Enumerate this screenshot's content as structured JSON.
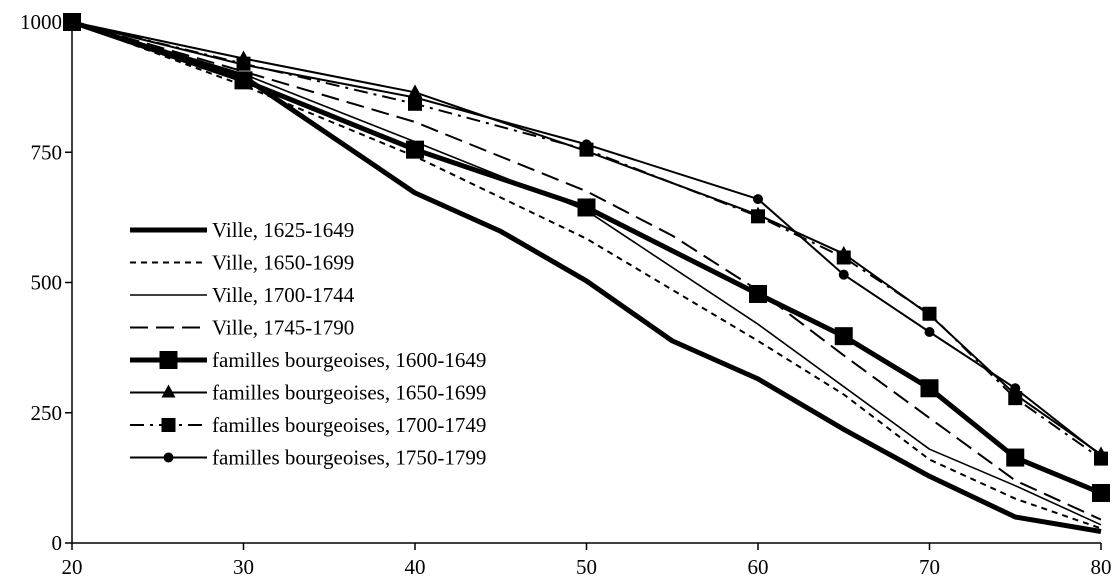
{
  "chart_data": {
    "type": "line",
    "title": "",
    "xlabel": "",
    "ylabel": "",
    "xlim": [
      20,
      80
    ],
    "ylim": [
      0,
      1000
    ],
    "x_ticks": [
      20,
      30,
      40,
      50,
      60,
      70,
      80
    ],
    "y_ticks": [
      0,
      250,
      500,
      750,
      1000
    ],
    "x_tick_labels": [
      "20",
      "30",
      "40",
      "50",
      "60",
      "70",
      "80"
    ],
    "y_tick_labels": [
      "0",
      "250",
      "500",
      "750",
      "1000"
    ],
    "grid": false,
    "legend_position": "center-left",
    "series": [
      {
        "name": "Ville, 1625-1649",
        "style": "solid-thick",
        "marker": "none",
        "color": "#000000",
        "points": [
          [
            20,
            1000
          ],
          [
            25,
            945
          ],
          [
            30,
            895
          ],
          [
            40,
            672
          ],
          [
            45,
            598
          ],
          [
            50,
            503
          ],
          [
            55,
            388
          ],
          [
            60,
            315
          ],
          [
            65,
            218
          ],
          [
            70,
            128
          ],
          [
            75,
            50
          ],
          [
            80,
            22
          ]
        ]
      },
      {
        "name": "Ville, 1650-1699",
        "style": "dotted",
        "marker": "none",
        "color": "#000000",
        "points": [
          [
            20,
            1000
          ],
          [
            30,
            878
          ],
          [
            40,
            742
          ],
          [
            50,
            584
          ],
          [
            60,
            388
          ],
          [
            65,
            285
          ],
          [
            70,
            160
          ],
          [
            75,
            85
          ],
          [
            80,
            28
          ]
        ]
      },
      {
        "name": "Ville, 1700-1744",
        "style": "solid-thin",
        "marker": "none",
        "color": "#000000",
        "points": [
          [
            20,
            1000
          ],
          [
            30,
            900
          ],
          [
            40,
            770
          ],
          [
            50,
            638
          ],
          [
            60,
            420
          ],
          [
            65,
            300
          ],
          [
            70,
            180
          ],
          [
            75,
            110
          ],
          [
            80,
            35
          ]
        ]
      },
      {
        "name": "Ville, 1745-1790",
        "style": "longdash",
        "marker": "none",
        "color": "#000000",
        "points": [
          [
            20,
            1000
          ],
          [
            30,
            905
          ],
          [
            40,
            808
          ],
          [
            50,
            675
          ],
          [
            55,
            590
          ],
          [
            60,
            485
          ],
          [
            65,
            360
          ],
          [
            70,
            240
          ],
          [
            75,
            120
          ],
          [
            80,
            45
          ]
        ]
      },
      {
        "name": "familles bourgeoises, 1600-1649",
        "style": "solid-thick",
        "marker": "square-large",
        "color": "#000000",
        "points": [
          [
            20,
            1000
          ],
          [
            30,
            888
          ],
          [
            40,
            755
          ],
          [
            50,
            644
          ],
          [
            60,
            478
          ],
          [
            65,
            397
          ],
          [
            70,
            297
          ],
          [
            75,
            164
          ],
          [
            80,
            96
          ]
        ]
      },
      {
        "name": "familles bourgeoises, 1650-1699",
        "style": "solid",
        "marker": "triangle",
        "color": "#000000",
        "points": [
          [
            20,
            1000
          ],
          [
            30,
            930
          ],
          [
            40,
            865
          ],
          [
            50,
            752
          ],
          [
            60,
            630
          ],
          [
            65,
            555
          ],
          [
            70,
            438
          ],
          [
            75,
            285
          ],
          [
            80,
            170
          ]
        ]
      },
      {
        "name": "familles bourgeoises, 1700-1749",
        "style": "dashdot",
        "marker": "square",
        "color": "#000000",
        "points": [
          [
            20,
            1000
          ],
          [
            30,
            920
          ],
          [
            40,
            843
          ],
          [
            50,
            755
          ],
          [
            60,
            627
          ],
          [
            65,
            548
          ],
          [
            70,
            440
          ],
          [
            75,
            278
          ],
          [
            80,
            162
          ]
        ]
      },
      {
        "name": "familles bourgeoises, 1750-1799",
        "style": "solid",
        "marker": "circle",
        "color": "#000000",
        "points": [
          [
            20,
            1000
          ],
          [
            30,
            918
          ],
          [
            40,
            855
          ],
          [
            50,
            765
          ],
          [
            60,
            660
          ],
          [
            65,
            515
          ],
          [
            70,
            405
          ],
          [
            75,
            297
          ],
          [
            80,
            168
          ]
        ]
      }
    ]
  }
}
